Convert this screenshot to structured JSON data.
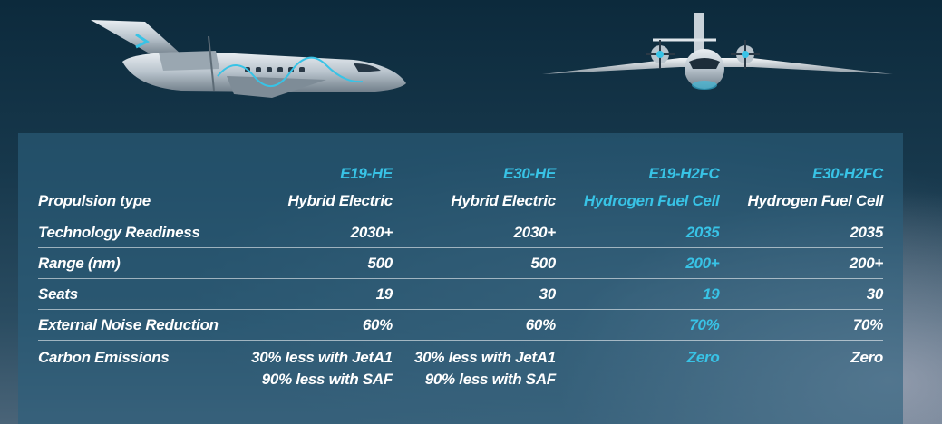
{
  "columns": [
    "E19-HE",
    "E30-HE",
    "E19-H2FC",
    "E30-H2FC"
  ],
  "highlight_color": "#38c3e6",
  "rows": [
    {
      "label": "Propulsion type",
      "values": [
        "Hybrid Electric",
        "Hybrid Electric",
        "Hydrogen Fuel Cell",
        "Hydrogen Fuel Cell"
      ]
    },
    {
      "label": "Technology Readiness",
      "values": [
        "2030+",
        "2030+",
        "2035",
        "2035"
      ]
    },
    {
      "label": "Range (nm)",
      "values": [
        "500",
        "500",
        "200+",
        "200+"
      ]
    },
    {
      "label": "Seats",
      "values": [
        "19",
        "30",
        "19",
        "30"
      ]
    },
    {
      "label": "External Noise Reduction",
      "values": [
        "60%",
        "60%",
        "70%",
        "70%"
      ]
    },
    {
      "label": "Carbon Emissions",
      "values": [
        "30% less with JetA1",
        "30% less with JetA1",
        "Zero",
        "Zero"
      ],
      "values_line2": [
        "90% less with SAF",
        "90% less with SAF",
        "",
        ""
      ]
    }
  ]
}
